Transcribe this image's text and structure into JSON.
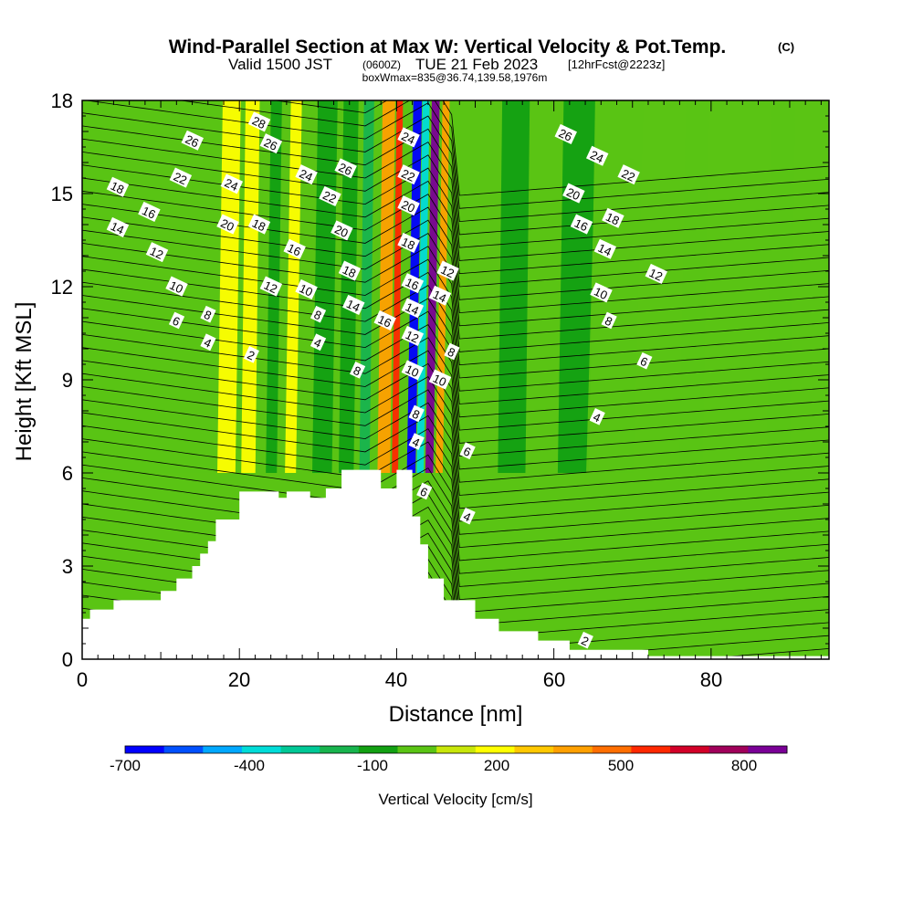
{
  "chart_data": {
    "type": "heatmap",
    "title": "Wind-Parallel Section at Max W: Vertical Velocity & Pot.Temp.",
    "copyright": "(C)",
    "subtitle_main": "Valid 1500 JST",
    "subtitle_utc": "(0600Z)",
    "subtitle_date": "TUE 21 Feb 2023",
    "subtitle_fcst": "[12hrFcst@2223z]",
    "subtitle_box": "boxWmax=835@36.74,139.58,1976m",
    "xlabel": "Distance [nm]",
    "ylabel": "Height [Kft MSL]",
    "xlim": [
      0,
      95
    ],
    "ylim": [
      0,
      18
    ],
    "x_ticks": [
      "0",
      "20",
      "40",
      "60",
      "80"
    ],
    "y_ticks": [
      "0",
      "3",
      "6",
      "9",
      "12",
      "15",
      "18"
    ],
    "colorbar": {
      "label": "Vertical Velocity [cm/s]",
      "tick_labels": [
        "-700",
        "-400",
        "-100",
        "200",
        "500",
        "800"
      ],
      "tick_values": [
        -700,
        -400,
        -100,
        200,
        500,
        800
      ],
      "min": -750,
      "max": 850,
      "bin_colors": [
        "#0000ff",
        "#0050ff",
        "#00a8ff",
        "#00dcd8",
        "#00c896",
        "#18b44e",
        "#12a012",
        "#5ac414",
        "#c8e60a",
        "#ffff00",
        "#ffc800",
        "#ffa000",
        "#ff6e00",
        "#ff2800",
        "#d20028",
        "#a0005a",
        "#7a0096"
      ]
    },
    "terrain_profile": {
      "x": [
        0,
        1,
        1,
        4,
        4,
        10,
        10,
        12,
        12,
        14,
        14,
        15,
        15,
        16,
        16,
        17,
        17,
        20,
        20,
        25,
        25,
        26,
        26,
        29,
        29,
        31,
        31,
        33,
        33,
        38,
        38,
        40,
        40,
        42,
        42,
        43,
        43,
        44,
        44,
        46,
        46,
        50,
        50,
        53,
        53,
        58,
        58,
        62,
        62,
        72,
        72,
        95
      ],
      "y": [
        1.3,
        1.3,
        1.6,
        1.6,
        1.9,
        1.9,
        2.2,
        2.2,
        2.6,
        2.6,
        3.0,
        3.0,
        3.4,
        3.4,
        3.8,
        3.8,
        4.5,
        4.5,
        5.4,
        5.4,
        5.2,
        5.2,
        5.4,
        5.4,
        5.2,
        5.2,
        5.5,
        5.5,
        6.1,
        6.1,
        5.5,
        5.5,
        6.1,
        6.1,
        4.6,
        4.6,
        3.7,
        3.7,
        2.6,
        2.6,
        1.9,
        1.9,
        1.3,
        1.3,
        0.9,
        0.9,
        0.6,
        0.6,
        0.3,
        0.3,
        0.1,
        0.1
      ]
    },
    "w_features": [
      {
        "x": 10,
        "y": 14.5,
        "w": 26,
        "value": -80
      },
      {
        "x": 18.8,
        "y": 12,
        "w": 2.3,
        "value": 150
      },
      {
        "x": 21.5,
        "y": 14,
        "w": 1.8,
        "value": 180
      },
      {
        "x": 24.5,
        "y": 12.5,
        "w": 1.4,
        "value": -120
      },
      {
        "x": 27,
        "y": 11,
        "w": 1.4,
        "value": 120
      },
      {
        "x": 31,
        "y": 11.5,
        "w": 2.5,
        "value": -110
      },
      {
        "x": 34,
        "y": 13,
        "w": 1.9,
        "value": -160
      },
      {
        "x": 36.3,
        "y": 13.5,
        "w": 1.3,
        "value": -260
      },
      {
        "x": 38.8,
        "y": 12.5,
        "w": 1.6,
        "value": 320
      },
      {
        "x": 40.2,
        "y": 13,
        "w": 0.8,
        "value": 520
      },
      {
        "x": 42.4,
        "y": 10,
        "w": 1.1,
        "value": -720
      },
      {
        "x": 43.5,
        "y": 11,
        "w": 0.9,
        "value": -380
      },
      {
        "x": 44.7,
        "y": 10,
        "w": 1.0,
        "value": 830
      },
      {
        "x": 46.0,
        "y": 9,
        "w": 0.9,
        "value": 320
      },
      {
        "x": 55,
        "y": 14,
        "w": 3.5,
        "value": -110
      },
      {
        "x": 63,
        "y": 11,
        "w": 4,
        "value": -100
      },
      {
        "x": 68,
        "y": 2.5,
        "w": 6,
        "value": -85
      },
      {
        "x": 78,
        "y": 9,
        "w": 3,
        "value": -90
      },
      {
        "x": 89,
        "y": 12,
        "w": 3,
        "value": -90
      }
    ],
    "theta_contour_labels": [
      {
        "text": "28",
        "x": 22.5,
        "y": 17.3
      },
      {
        "text": "26",
        "x": 14,
        "y": 16.7
      },
      {
        "text": "26",
        "x": 24,
        "y": 16.6
      },
      {
        "text": "24",
        "x": 28.5,
        "y": 15.6
      },
      {
        "text": "26",
        "x": 33.5,
        "y": 15.8
      },
      {
        "text": "24",
        "x": 41.5,
        "y": 16.8
      },
      {
        "text": "22",
        "x": 12.5,
        "y": 15.5
      },
      {
        "text": "24",
        "x": 19,
        "y": 15.3
      },
      {
        "text": "22",
        "x": 31.5,
        "y": 14.9
      },
      {
        "text": "22",
        "x": 41.5,
        "y": 15.6
      },
      {
        "text": "20",
        "x": 41.5,
        "y": 14.6
      },
      {
        "text": "18",
        "x": 4.5,
        "y": 15.2
      },
      {
        "text": "16",
        "x": 8.5,
        "y": 14.4
      },
      {
        "text": "20",
        "x": 18.5,
        "y": 14.0
      },
      {
        "text": "18",
        "x": 22.5,
        "y": 14.0
      },
      {
        "text": "20",
        "x": 33,
        "y": 13.8
      },
      {
        "text": "14",
        "x": 4.5,
        "y": 13.9
      },
      {
        "text": "18",
        "x": 41.5,
        "y": 13.4
      },
      {
        "text": "16",
        "x": 27,
        "y": 13.2
      },
      {
        "text": "12",
        "x": 9.5,
        "y": 13.1
      },
      {
        "text": "18",
        "x": 34,
        "y": 12.5
      },
      {
        "text": "12",
        "x": 46.5,
        "y": 12.5
      },
      {
        "text": "16",
        "x": 42,
        "y": 12.1
      },
      {
        "text": "10",
        "x": 12,
        "y": 12.0
      },
      {
        "text": "12",
        "x": 24,
        "y": 12.0
      },
      {
        "text": "10",
        "x": 28.5,
        "y": 11.9
      },
      {
        "text": "14",
        "x": 45.5,
        "y": 11.7
      },
      {
        "text": "14",
        "x": 42,
        "y": 11.3
      },
      {
        "text": "14",
        "x": 34.5,
        "y": 11.4
      },
      {
        "text": "8",
        "x": 16,
        "y": 11.1
      },
      {
        "text": "8",
        "x": 30,
        "y": 11.1
      },
      {
        "text": "16",
        "x": 38.5,
        "y": 10.9
      },
      {
        "text": "6",
        "x": 12,
        "y": 10.9
      },
      {
        "text": "12",
        "x": 42,
        "y": 10.4
      },
      {
        "text": "4",
        "x": 16,
        "y": 10.2
      },
      {
        "text": "4",
        "x": 30,
        "y": 10.2
      },
      {
        "text": "8",
        "x": 47,
        "y": 9.9
      },
      {
        "text": "2",
        "x": 21.5,
        "y": 9.8
      },
      {
        "text": "8",
        "x": 35,
        "y": 9.3
      },
      {
        "text": "10",
        "x": 42,
        "y": 9.3
      },
      {
        "text": "10",
        "x": 45.5,
        "y": 9.0
      },
      {
        "text": "8",
        "x": 42.5,
        "y": 7.9
      },
      {
        "text": "4",
        "x": 42.5,
        "y": 7.0
      },
      {
        "text": "6",
        "x": 49,
        "y": 6.7
      },
      {
        "text": "6",
        "x": 43.5,
        "y": 5.4
      },
      {
        "text": "4",
        "x": 49,
        "y": 4.6
      },
      {
        "text": "26",
        "x": 61.5,
        "y": 16.9
      },
      {
        "text": "24",
        "x": 65.5,
        "y": 16.2
      },
      {
        "text": "22",
        "x": 69.5,
        "y": 15.6
      },
      {
        "text": "20",
        "x": 62.5,
        "y": 15.0
      },
      {
        "text": "18",
        "x": 67.5,
        "y": 14.2
      },
      {
        "text": "16",
        "x": 63.5,
        "y": 14.0
      },
      {
        "text": "14",
        "x": 66.5,
        "y": 13.2
      },
      {
        "text": "12",
        "x": 73,
        "y": 12.4
      },
      {
        "text": "10",
        "x": 66,
        "y": 11.8
      },
      {
        "text": "8",
        "x": 67,
        "y": 10.9
      },
      {
        "text": "6",
        "x": 71.5,
        "y": 9.6
      },
      {
        "text": "4",
        "x": 65.5,
        "y": 7.8
      },
      {
        "text": "2",
        "x": 64,
        "y": 0.6
      }
    ]
  }
}
